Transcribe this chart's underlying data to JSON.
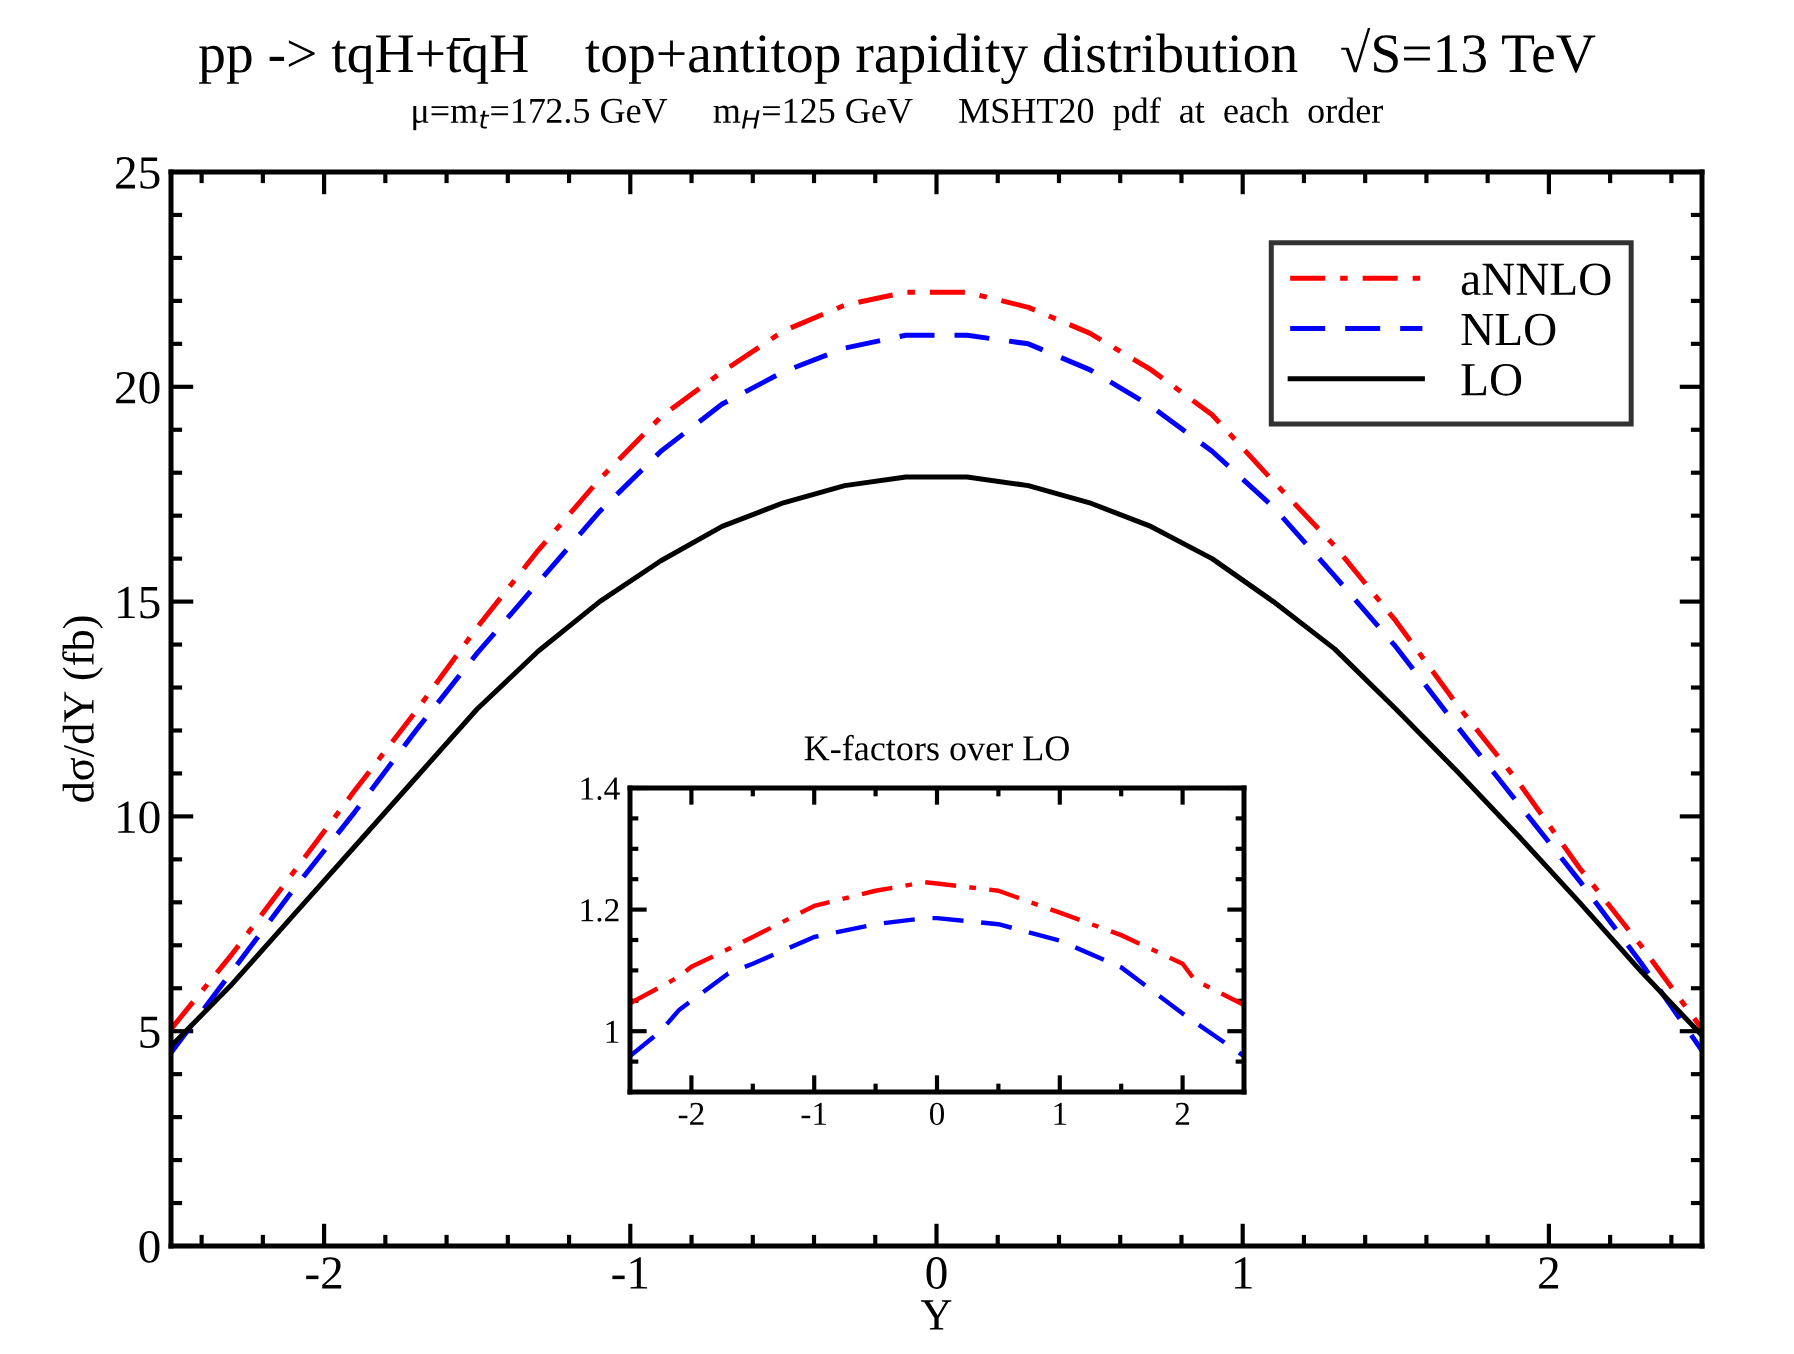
{
  "chart_data": [
    {
      "type": "line",
      "title": "pp -> tqH+t̄qH    top+antitop rapidity distribution   √S=13 TeV",
      "subtitle": "μ=m$_{t}$=172.5 GeV     m$_{H}$=125 GeV     MSHT20  pdf  at  each  order",
      "xlabel": "Y",
      "ylabel": "dσ/dY (fb)",
      "x": [
        -2.5,
        -2.3,
        -2.1,
        -1.9,
        -1.7,
        -1.5,
        -1.3,
        -1.1,
        -0.9,
        -0.7,
        -0.5,
        -0.3,
        -0.1,
        0.1,
        0.3,
        0.5,
        0.7,
        0.9,
        1.1,
        1.3,
        1.5,
        1.7,
        1.9,
        2.1,
        2.3,
        2.5
      ],
      "series": [
        {
          "name": "aNNLO",
          "color": "#ff0000",
          "line_style": "dashdot",
          "values": [
            5.05,
            6.8,
            8.7,
            10.6,
            12.45,
            14.4,
            16.2,
            17.85,
            19.3,
            20.35,
            21.3,
            21.9,
            22.2,
            22.2,
            21.85,
            21.25,
            20.4,
            19.35,
            17.8,
            16.3,
            14.55,
            12.6,
            10.8,
            8.8,
            7.0,
            5.05
          ]
        },
        {
          "name": "NLO",
          "color": "#0000ff",
          "line_style": "dashed",
          "values": [
            4.5,
            6.4,
            8.3,
            10.1,
            12.0,
            13.8,
            15.45,
            17.1,
            18.5,
            19.6,
            20.35,
            20.9,
            21.2,
            21.2,
            21.0,
            20.4,
            19.55,
            18.5,
            17.2,
            15.6,
            13.95,
            12.1,
            10.3,
            8.5,
            6.6,
            4.55
          ]
        },
        {
          "name": "LO",
          "color": "#000000",
          "line_style": "solid",
          "values": [
            4.65,
            6.1,
            7.7,
            9.3,
            10.9,
            12.5,
            13.85,
            15.0,
            15.95,
            16.75,
            17.3,
            17.7,
            17.9,
            17.9,
            17.7,
            17.3,
            16.75,
            16.0,
            15.0,
            13.9,
            12.5,
            11.05,
            9.55,
            8.0,
            6.4,
            4.9
          ]
        }
      ],
      "xlim": [
        -2.5,
        2.5
      ],
      "ylim": [
        0,
        25
      ],
      "xticks": [
        {
          "value": -2.4,
          "label": null
        },
        {
          "value": -2.2,
          "label": null
        },
        -2,
        {
          "value": -1.8,
          "label": null
        },
        {
          "value": -1.6,
          "label": null
        },
        {
          "value": -1.4,
          "label": null
        },
        {
          "value": -1.2,
          "label": null
        },
        -1,
        {
          "value": -0.8,
          "label": null
        },
        {
          "value": -0.6,
          "label": null
        },
        {
          "value": -0.4,
          "label": null
        },
        {
          "value": -0.2,
          "label": null
        },
        0,
        {
          "value": 0.2,
          "label": null
        },
        {
          "value": 0.4,
          "label": null
        },
        {
          "value": 0.6,
          "label": null
        },
        {
          "value": 0.8,
          "label": null
        },
        1,
        {
          "value": 1.2,
          "label": null
        },
        {
          "value": 1.4,
          "label": null
        },
        {
          "value": 1.6,
          "label": null
        },
        {
          "value": 1.8,
          "label": null
        },
        2,
        {
          "value": 2.2,
          "label": null
        },
        {
          "value": 2.4,
          "label": null
        }
      ],
      "yticks": [
        0,
        {
          "value": 1,
          "label": null
        },
        {
          "value": 2,
          "label": null
        },
        {
          "value": 3,
          "label": null
        },
        {
          "value": 4,
          "label": null
        },
        5,
        {
          "value": 6,
          "label": null
        },
        {
          "value": 7,
          "label": null
        },
        {
          "value": 8,
          "label": null
        },
        {
          "value": 9,
          "label": null
        },
        10,
        {
          "value": 11,
          "label": null
        },
        {
          "value": 12,
          "label": null
        },
        {
          "value": 13,
          "label": null
        },
        {
          "value": 14,
          "label": null
        },
        15,
        {
          "value": 16,
          "label": null
        },
        {
          "value": 17,
          "label": null
        },
        {
          "value": 18,
          "label": null
        },
        {
          "value": 19,
          "label": null
        },
        20,
        {
          "value": 21,
          "label": null
        },
        {
          "value": 22,
          "label": null
        },
        {
          "value": 23,
          "label": null
        },
        {
          "value": 24,
          "label": null
        },
        25
      ],
      "legend": "top right",
      "grid": false
    },
    {
      "type": "line",
      "title": "K-factors over LO",
      "x": [
        -2.5,
        -2.25,
        -2.1,
        -2,
        -1.7,
        -1.5,
        -1,
        -0.5,
        -0.1,
        0,
        0.5,
        1,
        1.5,
        2,
        2.1,
        2.5
      ],
      "series": [
        {
          "color": "#ff0000",
          "line_style": "dashdot",
          "values": [
            1.046,
            1.073,
            1.09,
            1.106,
            1.135,
            1.155,
            1.206,
            1.231,
            1.245,
            1.243,
            1.231,
            1.195,
            1.158,
            1.111,
            1.084,
            1.043
          ]
        },
        {
          "color": "#0000ff",
          "line_style": "dashed",
          "values": [
            0.959,
            1.0,
            1.035,
            1.05,
            1.095,
            1.111,
            1.155,
            1.176,
            1.186,
            1.186,
            1.176,
            1.149,
            1.105,
            1.029,
            1.015,
            0.959
          ]
        }
      ],
      "xlim": [
        -2.5,
        2.5
      ],
      "ylim": [
        0.9,
        1.4
      ],
      "xticks": [
        -2,
        {
          "value": -1.5,
          "label": null
        },
        -1,
        {
          "value": -0.5,
          "label": null
        },
        0,
        {
          "value": 0.5,
          "label": null
        },
        1,
        {
          "value": 1.5,
          "label": null
        },
        2
      ],
      "yticks": [
        {
          "value": 0.95,
          "label": null
        },
        1,
        {
          "value": 1.05,
          "label": null
        },
        {
          "value": 1.1,
          "label": null
        },
        {
          "value": 1.15,
          "label": null
        },
        1.2,
        {
          "value": 1.25,
          "label": null
        },
        {
          "value": 1.3,
          "label": null
        },
        {
          "value": 1.35,
          "label": null
        },
        1.4
      ],
      "grid": false
    }
  ]
}
